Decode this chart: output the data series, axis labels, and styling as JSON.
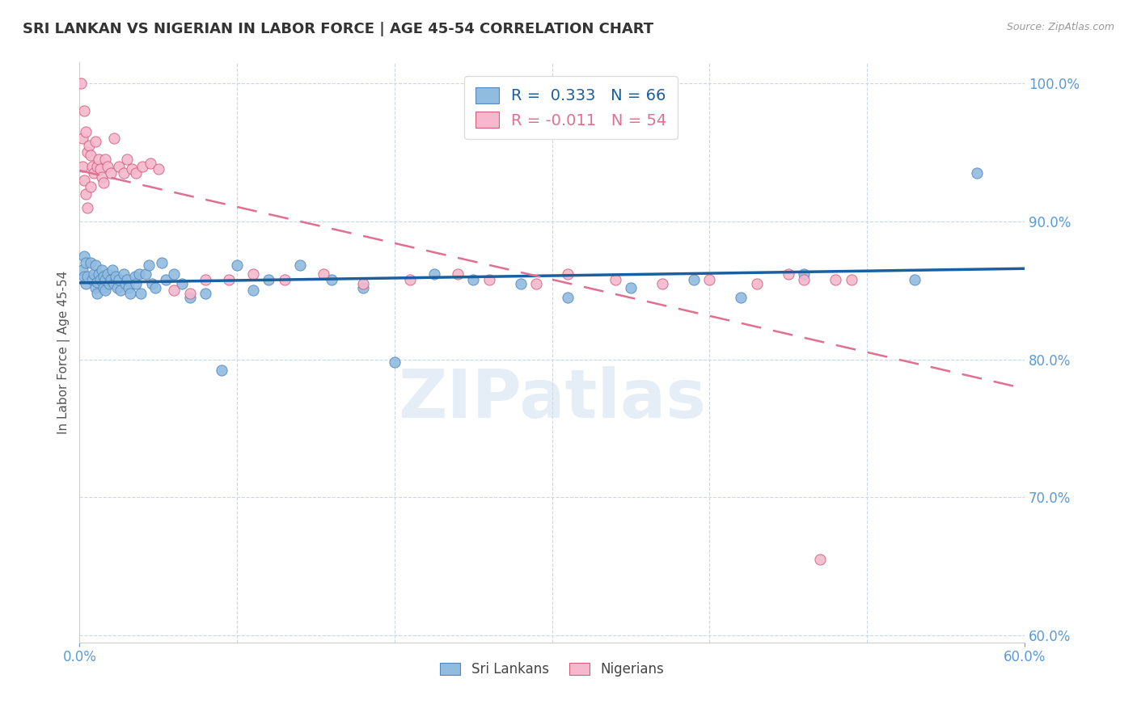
{
  "title": "SRI LANKAN VS NIGERIAN IN LABOR FORCE | AGE 45-54 CORRELATION CHART",
  "source": "Source: ZipAtlas.com",
  "ylabel": "In Labor Force | Age 45-54",
  "xlim": [
    0.0,
    0.6
  ],
  "ylim": [
    0.595,
    1.015
  ],
  "yticks": [
    0.6,
    0.7,
    0.8,
    0.9,
    1.0
  ],
  "sri_lankans_R": 0.333,
  "sri_lankans_N": 66,
  "nigerians_R": -0.011,
  "nigerians_N": 54,
  "blue_scatter": "#90bce0",
  "pink_scatter": "#f5b8cc",
  "blue_edge": "#5588bb",
  "pink_edge": "#d06080",
  "trend_blue": "#1a5fa0",
  "trend_pink": "#e07090",
  "axis_color": "#5b9bd5",
  "grid_color": "#c8d8ec",
  "title_color": "#333333",
  "source_color": "#999999",
  "watermark": "ZIPatlas",
  "sri_lankans_x": [
    0.002,
    0.003,
    0.003,
    0.004,
    0.004,
    0.005,
    0.007,
    0.008,
    0.009,
    0.01,
    0.01,
    0.011,
    0.011,
    0.012,
    0.013,
    0.014,
    0.015,
    0.015,
    0.016,
    0.016,
    0.018,
    0.019,
    0.02,
    0.021,
    0.022,
    0.023,
    0.024,
    0.025,
    0.026,
    0.028,
    0.029,
    0.03,
    0.031,
    0.032,
    0.035,
    0.036,
    0.038,
    0.039,
    0.042,
    0.044,
    0.046,
    0.048,
    0.052,
    0.055,
    0.06,
    0.065,
    0.07,
    0.08,
    0.09,
    0.1,
    0.11,
    0.12,
    0.14,
    0.16,
    0.18,
    0.2,
    0.225,
    0.25,
    0.28,
    0.31,
    0.35,
    0.39,
    0.42,
    0.46,
    0.53,
    0.57
  ],
  "sri_lankans_y": [
    0.865,
    0.875,
    0.86,
    0.87,
    0.855,
    0.86,
    0.87,
    0.858,
    0.862,
    0.868,
    0.852,
    0.856,
    0.848,
    0.862,
    0.858,
    0.865,
    0.86,
    0.852,
    0.858,
    0.85,
    0.862,
    0.855,
    0.858,
    0.865,
    0.855,
    0.86,
    0.852,
    0.858,
    0.85,
    0.862,
    0.855,
    0.858,
    0.852,
    0.848,
    0.86,
    0.855,
    0.862,
    0.848,
    0.862,
    0.868,
    0.855,
    0.852,
    0.87,
    0.858,
    0.862,
    0.855,
    0.845,
    0.848,
    0.792,
    0.868,
    0.85,
    0.858,
    0.868,
    0.858,
    0.852,
    0.798,
    0.862,
    0.858,
    0.855,
    0.845,
    0.852,
    0.858,
    0.845,
    0.862,
    0.858,
    0.935
  ],
  "nigerians_x": [
    0.001,
    0.002,
    0.002,
    0.003,
    0.003,
    0.004,
    0.004,
    0.005,
    0.005,
    0.006,
    0.007,
    0.007,
    0.008,
    0.009,
    0.01,
    0.011,
    0.012,
    0.013,
    0.014,
    0.015,
    0.016,
    0.018,
    0.02,
    0.022,
    0.025,
    0.028,
    0.03,
    0.033,
    0.036,
    0.04,
    0.045,
    0.05,
    0.06,
    0.07,
    0.08,
    0.095,
    0.11,
    0.13,
    0.155,
    0.18,
    0.21,
    0.24,
    0.26,
    0.29,
    0.31,
    0.34,
    0.37,
    0.4,
    0.43,
    0.45,
    0.46,
    0.47,
    0.48,
    0.49
  ],
  "nigerians_y": [
    1.0,
    0.96,
    0.94,
    0.98,
    0.93,
    0.965,
    0.92,
    0.95,
    0.91,
    0.955,
    0.948,
    0.925,
    0.94,
    0.935,
    0.958,
    0.94,
    0.945,
    0.938,
    0.932,
    0.928,
    0.945,
    0.94,
    0.935,
    0.96,
    0.94,
    0.935,
    0.945,
    0.938,
    0.935,
    0.94,
    0.942,
    0.938,
    0.85,
    0.848,
    0.858,
    0.858,
    0.862,
    0.858,
    0.862,
    0.855,
    0.858,
    0.862,
    0.858,
    0.855,
    0.862,
    0.858,
    0.855,
    0.858,
    0.855,
    0.862,
    0.858,
    0.655,
    0.858,
    0.858
  ]
}
